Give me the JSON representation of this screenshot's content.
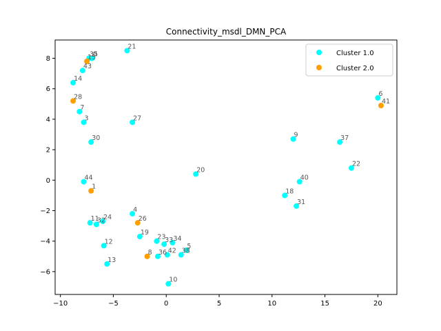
{
  "chart_data": {
    "type": "scatter",
    "title": "Connectivity_msdl_DMN_PCA",
    "xlabel": "",
    "ylabel": "",
    "xlim": [
      -10.5,
      21.8
    ],
    "ylim": [
      -7.5,
      9.2
    ],
    "xticks": [
      -10,
      -5,
      0,
      5,
      10,
      15,
      20
    ],
    "yticks": [
      -6,
      -4,
      -2,
      0,
      2,
      4,
      6,
      8
    ],
    "grid": false,
    "legend": "top-right",
    "series": [
      {
        "name": "Cluster 1.0",
        "color": "#00ffff",
        "points": [
          {
            "label": "0",
            "x": -7.0,
            "y": 8.0
          },
          {
            "label": "3",
            "x": -7.8,
            "y": 3.8
          },
          {
            "label": "4",
            "x": -3.2,
            "y": -2.2
          },
          {
            "label": "5",
            "x": 1.9,
            "y": -4.6
          },
          {
            "label": "6",
            "x": 20.0,
            "y": 5.4
          },
          {
            "label": "7",
            "x": -8.2,
            "y": 4.5
          },
          {
            "label": "9",
            "x": 12.0,
            "y": 2.7
          },
          {
            "label": "10",
            "x": 0.2,
            "y": -6.8
          },
          {
            "label": "11",
            "x": -7.2,
            "y": -2.8
          },
          {
            "label": "12",
            "x": -5.9,
            "y": -4.3
          },
          {
            "label": "13",
            "x": -5.6,
            "y": -5.5
          },
          {
            "label": "14",
            "x": -8.8,
            "y": 6.4
          },
          {
            "label": "18",
            "x": 11.2,
            "y": -1.0
          },
          {
            "label": "19",
            "x": -2.5,
            "y": -3.7
          },
          {
            "label": "20",
            "x": 2.8,
            "y": 0.4
          },
          {
            "label": "21",
            "x": -3.7,
            "y": 8.5
          },
          {
            "label": "22",
            "x": 17.5,
            "y": 0.8
          },
          {
            "label": "23",
            "x": -0.9,
            "y": -4.0
          },
          {
            "label": "24",
            "x": -6.0,
            "y": -2.7
          },
          {
            "label": "27",
            "x": -3.2,
            "y": 3.8
          },
          {
            "label": "30",
            "x": -7.1,
            "y": 2.5
          },
          {
            "label": "31",
            "x": 12.3,
            "y": -1.7
          },
          {
            "label": "32",
            "x": -6.6,
            "y": -2.9
          },
          {
            "label": "33",
            "x": -0.2,
            "y": -4.2
          },
          {
            "label": "34",
            "x": 0.6,
            "y": -4.1
          },
          {
            "label": "35",
            "x": -7.3,
            "y": 8.0
          },
          {
            "label": "36",
            "x": -0.8,
            "y": -5.0
          },
          {
            "label": "37",
            "x": 16.4,
            "y": 2.5
          },
          {
            "label": "38",
            "x": 1.4,
            "y": -4.9
          },
          {
            "label": "40",
            "x": 12.6,
            "y": -0.1
          },
          {
            "label": "42",
            "x": 0.1,
            "y": -4.9
          },
          {
            "label": "43",
            "x": -7.9,
            "y": 7.2
          },
          {
            "label": "44",
            "x": -7.8,
            "y": -0.1
          }
        ]
      },
      {
        "name": "Cluster 2.0",
        "color": "#ff9f00",
        "points": [
          {
            "label": "1",
            "x": -7.1,
            "y": -0.7
          },
          {
            "label": "8",
            "x": -1.8,
            "y": -5.0
          },
          {
            "label": "15",
            "x": -7.5,
            "y": 7.8
          },
          {
            "label": "26",
            "x": -2.7,
            "y": -2.8
          },
          {
            "label": "28",
            "x": -8.8,
            "y": 5.2
          },
          {
            "label": "41",
            "x": 20.3,
            "y": 4.9
          }
        ]
      }
    ]
  }
}
